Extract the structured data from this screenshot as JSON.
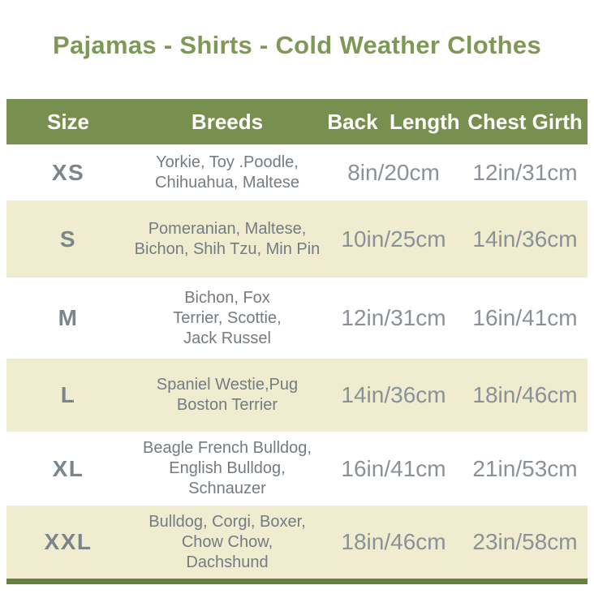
{
  "title": "Pajamas - Shirts - Cold Weather Clothes",
  "colors": {
    "title_text": "#7d9955",
    "header_bg": "#78904f",
    "header_text": "#ffffff",
    "alt_row_bg": "#efecd0",
    "size_text": "#7b858c",
    "breed_text": "#747c82",
    "value_text": "#8a9198",
    "bottom_bar": "#66803e"
  },
  "chart_data": {
    "type": "table",
    "title": "Pajamas - Shirts - Cold Weather Clothes",
    "columns": [
      "Size",
      "Breeds",
      "Back  Length",
      "Chest Girth"
    ],
    "rows": [
      {
        "size": "XS",
        "breeds_lines": [
          "Yorkie, Toy .Poodle,",
          "Chihuahua, Maltese"
        ],
        "back_length": "8in/20cm",
        "chest_girth": "12in/31cm"
      },
      {
        "size": "S",
        "breeds_lines": [
          "Pomeranian, Maltese,",
          "Bichon, Shih Tzu, Min Pin"
        ],
        "back_length": "10in/25cm",
        "chest_girth": "14in/36cm"
      },
      {
        "size": "M",
        "breeds_lines": [
          "Bichon, Fox",
          "Terrier, Scottie,",
          "Jack Russel"
        ],
        "back_length": "12in/31cm",
        "chest_girth": "16in/41cm"
      },
      {
        "size": "L",
        "breeds_lines": [
          "Spaniel Westie,Pug",
          "Boston Terrier"
        ],
        "back_length": "14in/36cm",
        "chest_girth": "18in/46cm"
      },
      {
        "size": "XL",
        "breeds_lines": [
          "Beagle French Bulldog,",
          "English Bulldog,",
          "Schnauzer"
        ],
        "back_length": "16in/41cm",
        "chest_girth": "21in/53cm"
      },
      {
        "size": "XXL",
        "breeds_lines": [
          "Bulldog, Corgi, Boxer,",
          "Chow Chow,",
          "Dachshund"
        ],
        "back_length": "18in/46cm",
        "chest_girth": "23in/58cm"
      }
    ]
  }
}
